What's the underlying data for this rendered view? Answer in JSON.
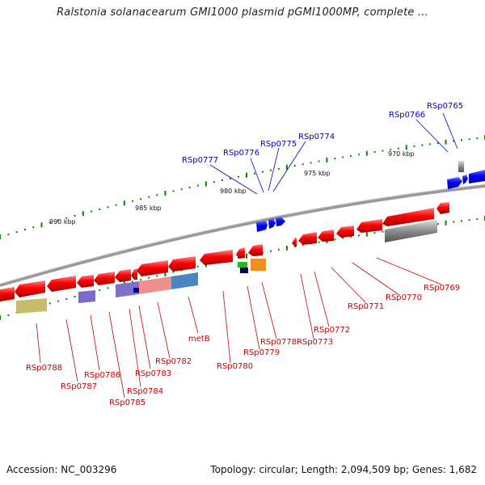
{
  "title": "Ralstonia solanacearum GMI1000 plasmid pGMI1000MP, complete ...",
  "footer": {
    "accession": "Accession: NC_003296",
    "summary": "Topology: circular; Length: 2,094,509 bp; Genes: 1,682"
  },
  "scale_labels": [
    "970 kbp",
    "975 kbp",
    "980 kbp",
    "985 kbp",
    "990 kbp"
  ],
  "forward_gene_labels": [
    "RSp0765",
    "RSp0766",
    "RSp0774",
    "RSp0775",
    "RSp0776",
    "RSp0777"
  ],
  "reverse_gene_labels": [
    "RSp0769",
    "RSp0770",
    "RSp0771",
    "RSp0772",
    "RSp0773",
    "RSp0778",
    "RSp0779",
    "RSp0780",
    "metB",
    "RSp0782",
    "RSp0783",
    "RSp0784",
    "RSp0785",
    "RSp0786",
    "RSp0787",
    "RSp0788"
  ],
  "colors": {
    "forward_gene": "#0000ee",
    "reverse_gene": "#ee0000",
    "backbone": "#888888",
    "tick": "#008800",
    "forward_label": "#0000cc",
    "reverse_label": "#cc0000"
  }
}
